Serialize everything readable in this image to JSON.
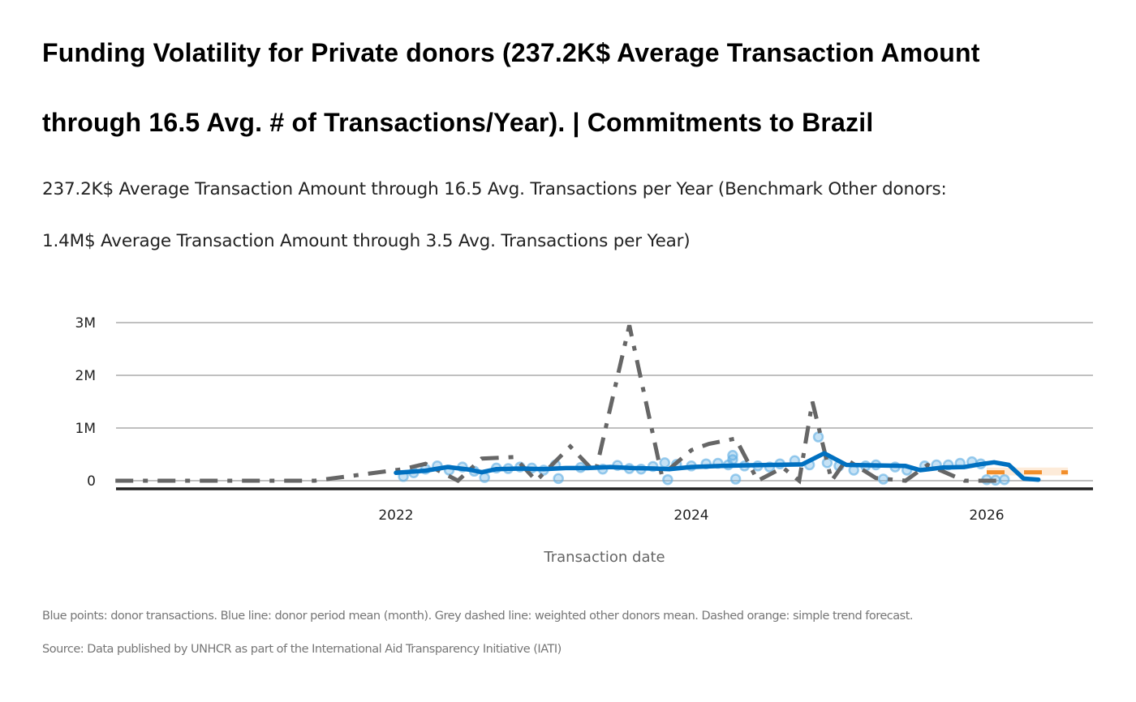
{
  "header": {
    "title_line1": "Funding  Volatility for Private donors (237.2K$ Average Transaction Amount",
    "title_line2": "through 16.5 Avg. # of Transactions/Year). | Commitments to Brazil",
    "subtitle_line1": "237.2K$ Average Transaction Amount through 16.5 Avg. Transactions per Year (Benchmark Other donors:",
    "subtitle_line2": "1.4M$ Average Transaction Amount through 3.5 Avg. Transactions per Year)"
  },
  "footer": {
    "note": "Blue points: donor transactions. Blue line: donor period mean (month). Grey dashed line: weighted other donors mean. Dashed orange: simple trend forecast.",
    "source": "Source: Data published by UNHCR as part of the International Aid Transparency Initiative (IATI)"
  },
  "colors": {
    "donor_points": "#5DADE2",
    "donor_line": "#0070C0",
    "benchmark_line": "#666666",
    "forecast": "#F28E2B",
    "forecast_band": "#FDEBD9",
    "grid": "#C0C0C0",
    "baseline": "#222222"
  },
  "chart_data": {
    "type": "line",
    "title": "Funding Volatility for Private donors | Commitments to Brazil",
    "xlabel": "Transaction date",
    "ylabel": "",
    "x_ticks": [
      "2022",
      "2024",
      "2026"
    ],
    "x_tick_values": [
      2022.0,
      2024.0,
      2026.0
    ],
    "y_ticks": [
      "0",
      "1M",
      "2M",
      "3M"
    ],
    "y_tick_values": [
      0,
      1000000,
      2000000,
      3000000
    ],
    "xlim": [
      2020.1,
      2026.6
    ],
    "ylim": [
      -150000,
      3000000
    ],
    "grid": true,
    "legend": "none",
    "series": [
      {
        "name": "Donor transactions",
        "kind": "scatter",
        "points": [
          [
            2022.05,
            80000
          ],
          [
            2022.12,
            150000
          ],
          [
            2022.2,
            220000
          ],
          [
            2022.28,
            280000
          ],
          [
            2022.36,
            200000
          ],
          [
            2022.45,
            260000
          ],
          [
            2022.53,
            180000
          ],
          [
            2022.6,
            60000
          ],
          [
            2022.68,
            240000
          ],
          [
            2022.76,
            230000
          ],
          [
            2022.84,
            260000
          ],
          [
            2022.92,
            240000
          ],
          [
            2023.0,
            200000
          ],
          [
            2023.08,
            300000
          ],
          [
            2023.1,
            40000
          ],
          [
            2023.25,
            250000
          ],
          [
            2023.4,
            220000
          ],
          [
            2023.5,
            290000
          ],
          [
            2023.58,
            230000
          ],
          [
            2023.66,
            220000
          ],
          [
            2023.74,
            270000
          ],
          [
            2023.82,
            340000
          ],
          [
            2023.84,
            20000
          ],
          [
            2023.9,
            310000
          ],
          [
            2024.0,
            280000
          ],
          [
            2024.1,
            320000
          ],
          [
            2024.18,
            330000
          ],
          [
            2024.25,
            300000
          ],
          [
            2024.28,
            480000
          ],
          [
            2024.28,
            400000
          ],
          [
            2024.3,
            30000
          ],
          [
            2024.36,
            280000
          ],
          [
            2024.45,
            280000
          ],
          [
            2024.53,
            260000
          ],
          [
            2024.6,
            320000
          ],
          [
            2024.7,
            380000
          ],
          [
            2024.8,
            300000
          ],
          [
            2024.86,
            830000
          ],
          [
            2024.92,
            340000
          ],
          [
            2025.0,
            280000
          ],
          [
            2025.1,
            200000
          ],
          [
            2025.18,
            280000
          ],
          [
            2025.25,
            300000
          ],
          [
            2025.3,
            30000
          ],
          [
            2025.38,
            260000
          ],
          [
            2025.46,
            200000
          ],
          [
            2025.58,
            280000
          ],
          [
            2025.66,
            300000
          ],
          [
            2025.74,
            300000
          ],
          [
            2025.82,
            330000
          ],
          [
            2025.9,
            360000
          ],
          [
            2025.96,
            320000
          ],
          [
            2026.0,
            20000
          ],
          [
            2026.06,
            10000
          ],
          [
            2026.12,
            20000
          ]
        ]
      },
      {
        "name": "Donor period mean (month)",
        "kind": "line",
        "points": [
          [
            2022.0,
            150000
          ],
          [
            2022.2,
            190000
          ],
          [
            2022.35,
            260000
          ],
          [
            2022.5,
            210000
          ],
          [
            2022.58,
            160000
          ],
          [
            2022.68,
            220000
          ],
          [
            2022.85,
            230000
          ],
          [
            2023.0,
            220000
          ],
          [
            2023.15,
            240000
          ],
          [
            2023.3,
            240000
          ],
          [
            2023.45,
            260000
          ],
          [
            2023.6,
            240000
          ],
          [
            2023.75,
            230000
          ],
          [
            2023.85,
            220000
          ],
          [
            2024.0,
            260000
          ],
          [
            2024.2,
            280000
          ],
          [
            2024.35,
            290000
          ],
          [
            2024.55,
            300000
          ],
          [
            2024.75,
            310000
          ],
          [
            2024.9,
            520000
          ],
          [
            2025.05,
            300000
          ],
          [
            2025.25,
            290000
          ],
          [
            2025.45,
            280000
          ],
          [
            2025.55,
            200000
          ],
          [
            2025.7,
            250000
          ],
          [
            2025.85,
            260000
          ],
          [
            2025.95,
            310000
          ],
          [
            2026.05,
            350000
          ],
          [
            2026.15,
            300000
          ],
          [
            2026.25,
            40000
          ],
          [
            2026.35,
            20000
          ]
        ]
      },
      {
        "name": "Weighted other donors mean",
        "kind": "dashed-line",
        "points": [
          [
            2020.1,
            0
          ],
          [
            2021.45,
            0
          ],
          [
            2022.05,
            220000
          ],
          [
            2022.2,
            320000
          ],
          [
            2022.42,
            0
          ],
          [
            2022.58,
            420000
          ],
          [
            2022.8,
            450000
          ],
          [
            2022.95,
            0
          ],
          [
            2023.18,
            650000
          ],
          [
            2023.35,
            150000
          ],
          [
            2023.58,
            2950000
          ],
          [
            2023.8,
            100000
          ],
          [
            2024.0,
            580000
          ],
          [
            2024.12,
            700000
          ],
          [
            2024.3,
            800000
          ],
          [
            2024.45,
            0
          ],
          [
            2024.62,
            250000
          ],
          [
            2024.73,
            0
          ],
          [
            2024.82,
            1500000
          ],
          [
            2024.95,
            0
          ],
          [
            2025.05,
            400000
          ],
          [
            2025.25,
            50000
          ],
          [
            2025.45,
            0
          ],
          [
            2025.6,
            300000
          ],
          [
            2025.85,
            0
          ],
          [
            2026.1,
            0
          ]
        ]
      },
      {
        "name": "Simple trend forecast",
        "kind": "forecast",
        "points": [
          [
            2026.0,
            160000
          ],
          [
            2026.55,
            160000
          ]
        ],
        "band": [
          100000,
          250000
        ]
      }
    ]
  }
}
